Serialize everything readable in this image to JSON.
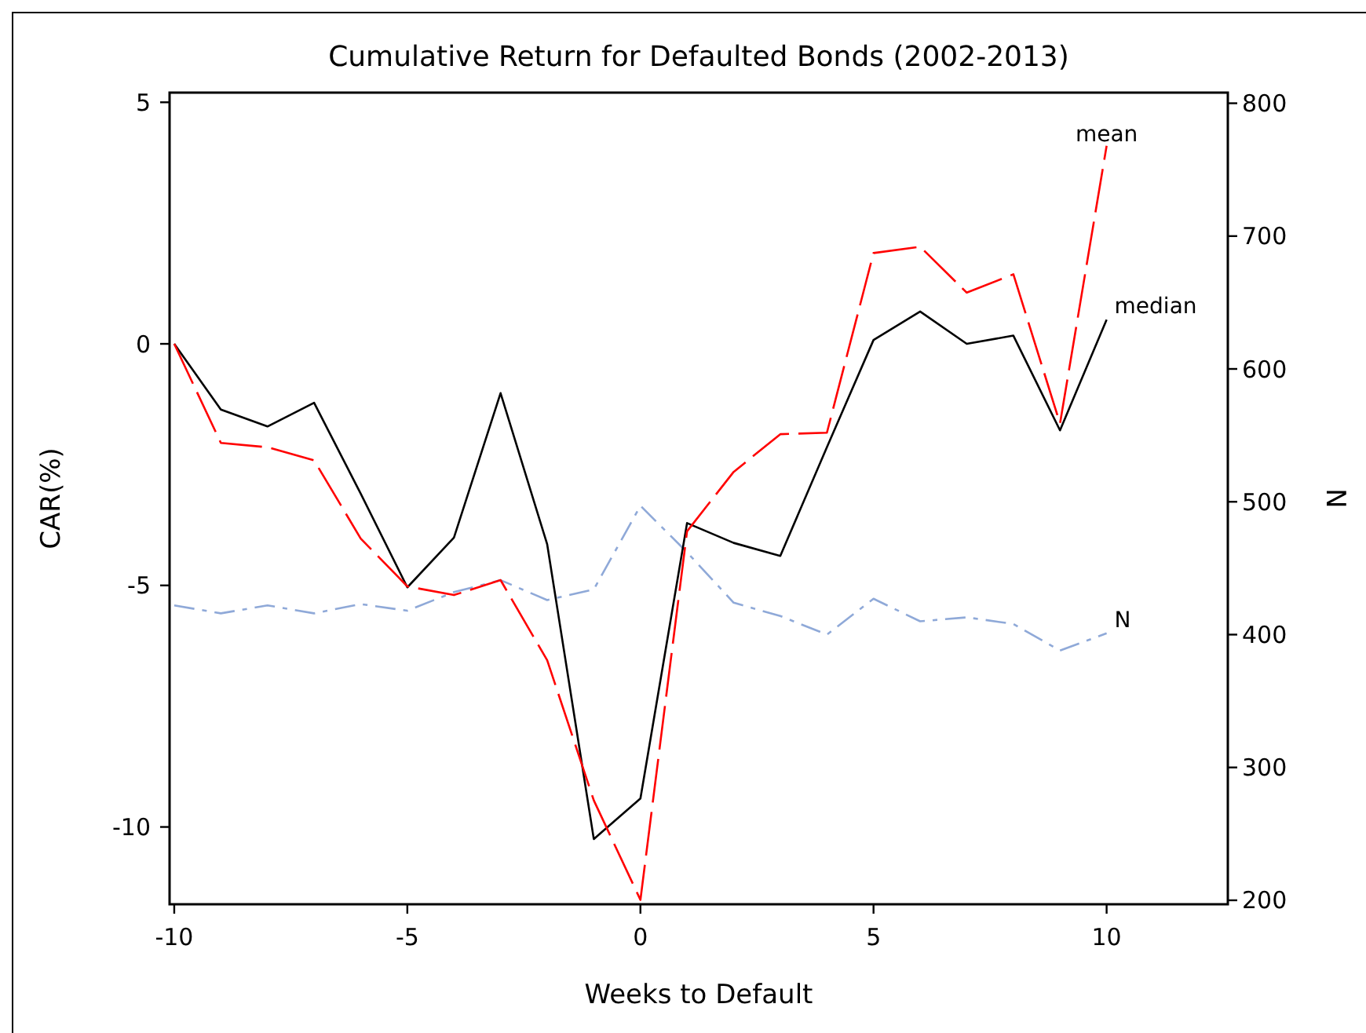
{
  "chart_data": {
    "type": "line",
    "title": "Cumulative Return for Defaulted Bonds (2002-2013)",
    "xlabel": "Weeks to Default",
    "ylabel": "CAR(%)",
    "y2label": "N",
    "x": [
      -10,
      -9,
      -8,
      -7,
      -6,
      -5,
      -4,
      -3,
      -2,
      -1,
      0,
      1,
      2,
      3,
      4,
      5,
      6,
      7,
      8,
      9,
      10
    ],
    "xlim": [
      -10.1,
      12.6
    ],
    "xticks": [
      -10,
      -5,
      0,
      5,
      10
    ],
    "ylim": [
      -11.6,
      5.2
    ],
    "yticks": [
      -10,
      -5,
      0,
      5
    ],
    "y2lim": [
      197,
      808
    ],
    "y2ticks": [
      200,
      300,
      400,
      500,
      600,
      700,
      800
    ],
    "series": [
      {
        "name": "mean",
        "color": "#ff0000",
        "line_style": "dashed",
        "values": [
          0,
          -2.05,
          -2.14,
          -2.41,
          -4.03,
          -5.02,
          -5.2,
          -4.89,
          -6.55,
          -9.45,
          -11.51,
          -3.88,
          -2.65,
          -1.87,
          -1.84,
          1.88,
          2.01,
          1.06,
          1.44,
          -1.65,
          4.1
        ]
      },
      {
        "name": "median",
        "color": "#000000",
        "line_style": "solid",
        "values": [
          0,
          -1.36,
          -1.71,
          -1.22,
          -3.1,
          -5.04,
          -4.01,
          -1.02,
          -4.15,
          -10.25,
          -9.41,
          -3.71,
          -4.12,
          -4.39,
          -2.14,
          0.08,
          0.67,
          0,
          0.17,
          -1.79,
          0.5
        ]
      },
      {
        "name": "N",
        "color": "#8fa9d8",
        "line_style": "dashdot",
        "axis": "y2",
        "values": [
          422,
          416,
          422,
          416,
          423,
          418,
          432,
          441,
          426,
          434,
          497,
          462,
          424,
          414,
          400,
          427,
          410,
          413,
          408,
          388,
          401
        ]
      }
    ]
  }
}
